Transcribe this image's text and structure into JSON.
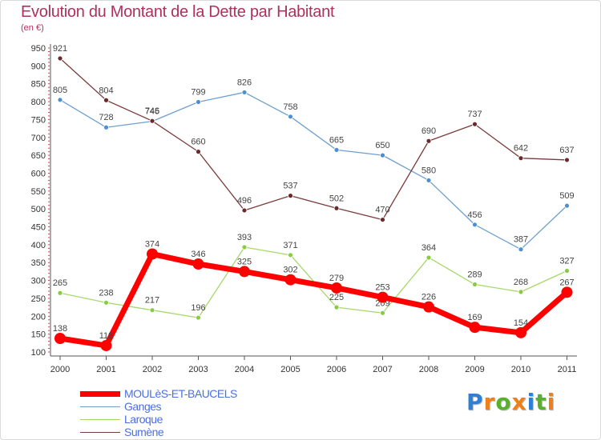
{
  "chart_data": {
    "type": "line",
    "title": "Evolution du Montant de la Dette par Habitant",
    "subtitle": "(en €)",
    "x": [
      "2000",
      "2001",
      "2002",
      "2003",
      "2004",
      "2005",
      "2006",
      "2007",
      "2008",
      "2009",
      "2010",
      "2011"
    ],
    "ylim": [
      100,
      950
    ],
    "yticks": [
      100,
      150,
      200,
      250,
      300,
      350,
      400,
      450,
      500,
      550,
      600,
      650,
      700,
      750,
      800,
      850,
      900,
      950
    ],
    "grid": false,
    "legend_position": "bottom-left",
    "series": [
      {
        "name": "MOULèS-ET-BAUCELS",
        "color": "#ff0000",
        "highlight": true,
        "values": [
          138,
          118,
          374,
          346,
          325,
          302,
          279,
          253,
          226,
          169,
          154,
          267
        ]
      },
      {
        "name": "Ganges",
        "color": "#6d9fcf",
        "marker": "#4f8fd0",
        "highlight": false,
        "values": [
          805,
          728,
          745,
          799,
          826,
          758,
          665,
          650,
          580,
          456,
          387,
          509
        ]
      },
      {
        "name": "Laroque",
        "color": "#a6d86c",
        "marker": "#88cc44",
        "highlight": false,
        "values": [
          265,
          238,
          217,
          196,
          393,
          371,
          225,
          209,
          364,
          289,
          268,
          327
        ]
      },
      {
        "name": "Sumène",
        "color": "#7a3b3b",
        "marker": "#6b2a2a",
        "highlight": false,
        "values": [
          921,
          804,
          746,
          660,
          496,
          537,
          502,
          470,
          690,
          737,
          642,
          637
        ]
      }
    ]
  },
  "legend_label_color": "#4a6fe0",
  "logo": {
    "letters": [
      "P",
      "r",
      "o",
      "x",
      "i",
      "t",
      "i"
    ],
    "colors": [
      "#2f7fd4",
      "#f07f1a",
      "#58b12c",
      "#f07f1a",
      "#2f7fd4",
      "#58b12c",
      "#f07f1a"
    ]
  }
}
